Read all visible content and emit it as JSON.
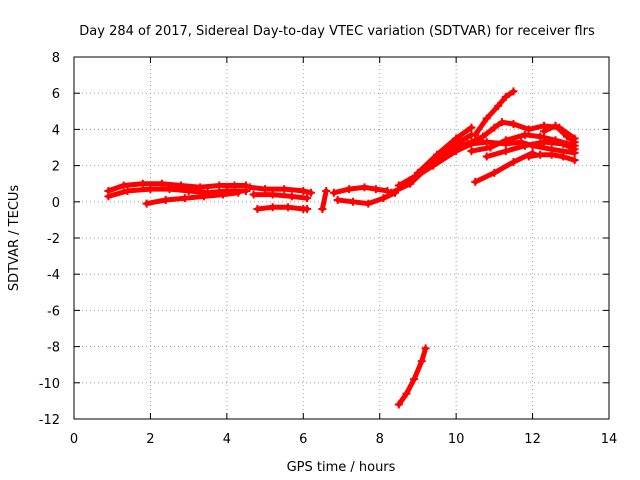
{
  "chart_data": {
    "type": "scatter",
    "title": "Day 284 of 2017, Sidereal Day-to-day VTEC variation (SDTVAR) for receiver flrs",
    "xlabel": "GPS time / hours",
    "ylabel": "SDTVAR / TECUs",
    "xlim": [
      0,
      14
    ],
    "ylim": [
      -12,
      8
    ],
    "xticks": [
      0,
      2,
      4,
      6,
      8,
      10,
      12,
      14
    ],
    "yticks": [
      -12,
      -10,
      -8,
      -6,
      -4,
      -2,
      0,
      2,
      4,
      6,
      8
    ],
    "grid": true,
    "legend": "none",
    "color": "#ff0000",
    "series": [
      {
        "x": [
          0.9,
          1.3,
          1.8,
          2.3,
          2.8,
          3.3,
          3.8,
          4.2,
          4.5
        ],
        "y": [
          0.6,
          0.9,
          1.0,
          1.0,
          0.9,
          0.8,
          0.9,
          0.9,
          0.9
        ]
      },
      {
        "x": [
          0.9,
          1.4,
          2.0,
          2.5,
          3.0,
          3.5,
          4.0,
          4.5
        ],
        "y": [
          0.3,
          0.6,
          0.7,
          0.7,
          0.6,
          0.5,
          0.6,
          0.6
        ]
      },
      {
        "x": [
          1.9,
          2.4,
          2.9,
          3.4,
          3.9,
          4.3
        ],
        "y": [
          -0.1,
          0.1,
          0.2,
          0.3,
          0.4,
          0.5
        ]
      },
      {
        "x": [
          4.6,
          5.0,
          5.5,
          6.0,
          6.2
        ],
        "y": [
          0.8,
          0.7,
          0.7,
          0.6,
          0.5
        ]
      },
      {
        "x": [
          4.7,
          5.2,
          5.7,
          6.1
        ],
        "y": [
          0.4,
          0.4,
          0.3,
          0.2
        ]
      },
      {
        "x": [
          4.8,
          5.2,
          5.6,
          6.0,
          6.1
        ],
        "y": [
          -0.4,
          -0.3,
          -0.3,
          -0.4,
          -0.4
        ]
      },
      {
        "x": [
          6.5,
          6.6
        ],
        "y": [
          -0.4,
          0.6
        ]
      },
      {
        "x": [
          6.8,
          7.2,
          7.6,
          7.9,
          8.2
        ],
        "y": [
          0.5,
          0.7,
          0.8,
          0.7,
          0.6
        ]
      },
      {
        "x": [
          6.9,
          7.3,
          7.7,
          8.1,
          8.4
        ],
        "y": [
          0.1,
          0.0,
          -0.1,
          0.2,
          0.5
        ]
      },
      {
        "x": [
          8.3,
          8.8,
          9.2,
          9.6,
          10.0,
          10.4
        ],
        "y": [
          0.5,
          1.0,
          1.8,
          2.5,
          3.0,
          3.3
        ]
      },
      {
        "x": [
          8.5,
          9.0,
          9.5,
          10.0,
          10.4
        ],
        "y": [
          0.9,
          1.5,
          2.3,
          3.2,
          3.7
        ]
      },
      {
        "x": [
          8.8,
          9.4,
          10.0,
          10.4,
          10.8,
          11.3,
          11.7,
          12.0,
          12.5,
          13.1
        ],
        "y": [
          1.2,
          2.0,
          2.8,
          3.2,
          3.3,
          3.2,
          3.3,
          3.1,
          2.9,
          2.7
        ]
      },
      {
        "x": [
          9.0,
          9.5,
          10.0,
          10.4
        ],
        "y": [
          1.6,
          2.6,
          3.5,
          4.1
        ]
      },
      {
        "x": [
          10.5,
          10.8,
          11.1,
          11.3,
          11.5
        ],
        "y": [
          3.7,
          4.6,
          5.3,
          5.8,
          6.1
        ]
      },
      {
        "x": [
          10.3,
          10.7,
          11.0,
          11.2,
          11.5,
          11.9,
          12.3,
          12.7,
          13.1
        ],
        "y": [
          3.2,
          3.6,
          4.1,
          4.4,
          4.3,
          4.0,
          4.2,
          4.1,
          3.5
        ]
      },
      {
        "x": [
          10.4,
          10.9,
          11.3,
          11.8,
          12.2,
          12.6,
          13.1
        ],
        "y": [
          2.8,
          3.0,
          3.4,
          3.7,
          3.6,
          3.4,
          3.1
        ]
      },
      {
        "x": [
          10.8,
          11.3,
          11.8,
          12.3,
          12.8,
          13.1
        ],
        "y": [
          2.5,
          2.8,
          3.1,
          3.3,
          3.2,
          2.9
        ]
      },
      {
        "x": [
          10.5,
          11.0,
          11.5,
          12.0
        ],
        "y": [
          1.1,
          1.6,
          2.2,
          2.7
        ]
      },
      {
        "x": [
          11.9,
          12.2,
          12.5,
          12.8,
          13.1
        ],
        "y": [
          2.5,
          2.6,
          2.6,
          2.5,
          2.3
        ]
      },
      {
        "x": [
          12.3,
          12.6,
          12.9,
          13.1
        ],
        "y": [
          3.9,
          4.2,
          3.6,
          3.3
        ]
      },
      {
        "x": [
          8.5,
          8.7,
          8.9,
          9.1,
          9.2
        ],
        "y": [
          -11.2,
          -10.6,
          -9.8,
          -8.8,
          -8.1
        ]
      }
    ]
  }
}
